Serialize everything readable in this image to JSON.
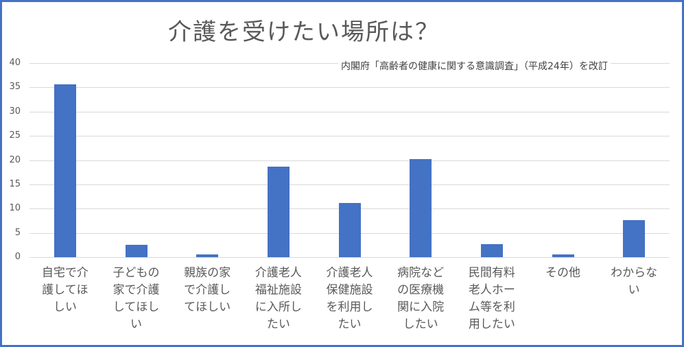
{
  "chart_data": {
    "type": "bar",
    "title": "介護を受けたい場所は？",
    "annotation": "内閣府「高齢者の健康に関する意識調査」（平成24年）を改訂",
    "xlabel": "",
    "ylabel": "",
    "ylim": [
      0,
      40
    ],
    "yticks": [
      "0",
      "5",
      "10",
      "15",
      "20",
      "25",
      "30",
      "35",
      "40"
    ],
    "grid": true,
    "legend": "none",
    "bar_color": "#4472c4",
    "categories": [
      "自宅で介\n護してほ\nしい",
      "子どもの\n家で介護\nしてほし\nい",
      "親族の家\nで介護し\nてほしい",
      "介護老人\n福祉施設\nに入所し\nたい",
      "介護老人\n保健施設\nを利用し\nたい",
      "病院など\nの医療機\n関に入院\nしたい",
      "民間有料\n老人ホー\nム等を利\n用したい",
      "その他",
      "わからな\nい"
    ],
    "values": [
      35.6,
      2.5,
      0.5,
      18.7,
      11.2,
      20.2,
      2.7,
      0.6,
      7.7
    ]
  },
  "colors": {
    "border": "#4472c4",
    "bar": "#4472c4",
    "grid": "#d9d9d9",
    "text": "#595959"
  }
}
